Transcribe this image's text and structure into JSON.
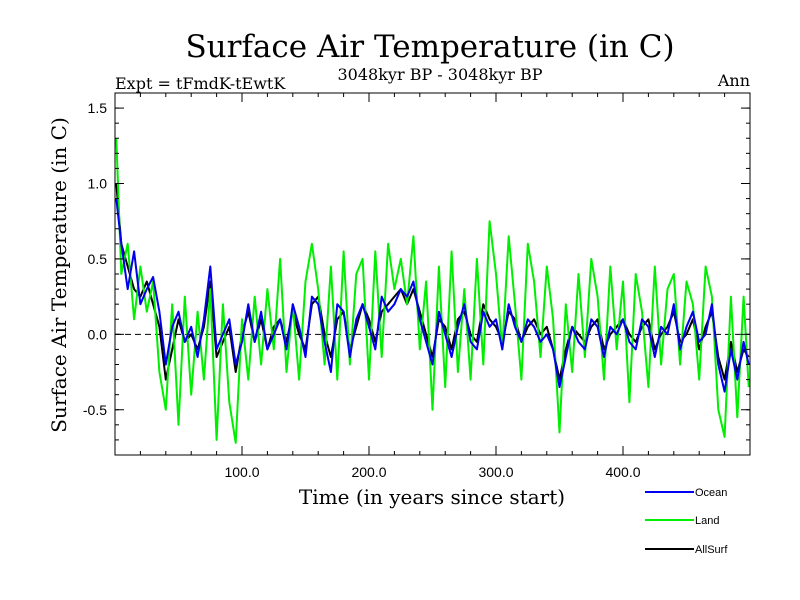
{
  "chart_data": {
    "type": "line",
    "title": "Surface Air Temperature (in C)",
    "subtitle": "3048kyr BP - 3048kyr BP",
    "expt_label": "Expt = tFmdK-tEwtK",
    "period_label": "Ann",
    "xlabel": "Time (in years since start)",
    "ylabel": "Surface Air Temperature (in C)",
    "xlim": [
      0,
      500
    ],
    "ylim": [
      -0.8,
      1.6
    ],
    "x_ticks": [
      100,
      200,
      300,
      400
    ],
    "x_tick_labels": [
      "100.0",
      "200.0",
      "300.0",
      "400.0"
    ],
    "y_ticks": [
      -0.5,
      0.0,
      0.5,
      1.0,
      1.5
    ],
    "y_tick_labels": [
      "-0.5",
      "0.0",
      "0.5",
      "1.0",
      "1.5"
    ],
    "zero_line": true,
    "series": [
      {
        "name": "AllSurf",
        "color": "#000000",
        "x": [
          1,
          5,
          10,
          15,
          20,
          25,
          30,
          35,
          40,
          45,
          50,
          55,
          60,
          65,
          70,
          75,
          80,
          85,
          90,
          95,
          100,
          105,
          110,
          115,
          120,
          125,
          130,
          135,
          140,
          145,
          150,
          155,
          160,
          165,
          170,
          175,
          180,
          185,
          190,
          195,
          200,
          205,
          210,
          215,
          220,
          225,
          230,
          235,
          240,
          245,
          250,
          255,
          260,
          265,
          270,
          275,
          280,
          285,
          290,
          295,
          300,
          305,
          310,
          315,
          320,
          325,
          330,
          335,
          340,
          345,
          350,
          355,
          360,
          365,
          370,
          375,
          380,
          385,
          390,
          395,
          400,
          405,
          410,
          415,
          420,
          425,
          430,
          435,
          440,
          445,
          450,
          455,
          460,
          465,
          470,
          475,
          480,
          485,
          490,
          495,
          499
        ],
        "values": [
          1.0,
          0.6,
          0.45,
          0.3,
          0.25,
          0.35,
          0.2,
          0.05,
          -0.3,
          -0.1,
          0.1,
          -0.05,
          0.0,
          -0.1,
          0.05,
          0.35,
          -0.15,
          -0.05,
          0.05,
          -0.25,
          0.0,
          0.15,
          -0.05,
          0.1,
          -0.1,
          0.05,
          0.1,
          -0.05,
          0.15,
          0.0,
          -0.1,
          0.2,
          0.25,
          0.0,
          -0.15,
          0.1,
          0.15,
          -0.1,
          0.05,
          0.2,
          0.1,
          -0.05,
          0.15,
          0.2,
          0.25,
          0.3,
          0.2,
          0.3,
          0.15,
          0.0,
          -0.15,
          0.1,
          0.05,
          -0.1,
          0.1,
          0.15,
          0.0,
          -0.05,
          0.2,
          0.1,
          0.05,
          -0.05,
          0.15,
          0.1,
          -0.05,
          0.05,
          0.1,
          0.0,
          0.05,
          -0.1,
          -0.3,
          -0.1,
          0.05,
          0.0,
          -0.05,
          0.05,
          0.1,
          -0.1,
          0.0,
          0.05,
          0.1,
          0.0,
          -0.05,
          0.05,
          0.1,
          -0.1,
          0.0,
          0.05,
          0.15,
          -0.05,
          0.0,
          0.1,
          -0.1,
          0.05,
          0.15,
          -0.15,
          -0.3,
          -0.05,
          -0.25,
          -0.1,
          -0.15
        ]
      },
      {
        "name": "Land",
        "color": "#00ee00",
        "x": [
          1,
          5,
          10,
          15,
          20,
          25,
          30,
          35,
          40,
          45,
          50,
          55,
          60,
          65,
          70,
          75,
          80,
          85,
          90,
          95,
          100,
          105,
          110,
          115,
          120,
          125,
          130,
          135,
          140,
          145,
          150,
          155,
          160,
          165,
          170,
          175,
          180,
          185,
          190,
          195,
          200,
          205,
          210,
          215,
          220,
          225,
          230,
          235,
          240,
          245,
          250,
          255,
          260,
          265,
          270,
          275,
          280,
          285,
          290,
          295,
          300,
          305,
          310,
          315,
          320,
          325,
          330,
          335,
          340,
          345,
          350,
          355,
          360,
          365,
          370,
          375,
          380,
          385,
          390,
          395,
          400,
          405,
          410,
          415,
          420,
          425,
          430,
          435,
          440,
          445,
          450,
          455,
          460,
          465,
          470,
          475,
          480,
          485,
          490,
          495,
          499
        ],
        "values": [
          1.3,
          0.4,
          0.6,
          0.1,
          0.45,
          0.15,
          0.35,
          -0.25,
          -0.5,
          0.2,
          -0.6,
          0.25,
          -0.4,
          0.15,
          -0.3,
          0.3,
          -0.7,
          0.2,
          -0.45,
          -0.72,
          0.1,
          -0.3,
          0.25,
          -0.2,
          0.3,
          -0.1,
          0.5,
          -0.25,
          0.2,
          -0.3,
          0.35,
          0.6,
          0.3,
          -0.2,
          0.45,
          -0.3,
          0.55,
          -0.2,
          0.4,
          0.5,
          -0.3,
          0.55,
          -0.15,
          0.6,
          0.3,
          0.5,
          0.2,
          0.65,
          -0.1,
          0.35,
          -0.5,
          0.45,
          -0.35,
          0.55,
          -0.25,
          0.3,
          -0.3,
          0.5,
          -0.2,
          0.75,
          0.4,
          -0.1,
          0.65,
          0.2,
          -0.3,
          0.6,
          0.35,
          -0.15,
          0.45,
          0.1,
          -0.65,
          0.2,
          -0.25,
          0.4,
          -0.15,
          0.5,
          0.25,
          -0.3,
          0.45,
          -0.1,
          0.35,
          -0.45,
          0.4,
          0.15,
          -0.35,
          0.45,
          -0.2,
          0.3,
          0.4,
          -0.2,
          0.35,
          0.2,
          -0.3,
          0.45,
          0.25,
          -0.5,
          -0.68,
          0.25,
          -0.55,
          0.25,
          -0.35
        ]
      },
      {
        "name": "Ocean",
        "color": "#0000ee",
        "x": [
          1,
          5,
          10,
          15,
          20,
          25,
          30,
          35,
          40,
          45,
          50,
          55,
          60,
          65,
          70,
          75,
          80,
          85,
          90,
          95,
          100,
          105,
          110,
          115,
          120,
          125,
          130,
          135,
          140,
          145,
          150,
          155,
          160,
          165,
          170,
          175,
          180,
          185,
          190,
          195,
          200,
          205,
          210,
          215,
          220,
          225,
          230,
          235,
          240,
          245,
          250,
          255,
          260,
          265,
          270,
          275,
          280,
          285,
          290,
          295,
          300,
          305,
          310,
          315,
          320,
          325,
          330,
          335,
          340,
          345,
          350,
          355,
          360,
          365,
          370,
          375,
          380,
          385,
          390,
          395,
          400,
          405,
          410,
          415,
          420,
          425,
          430,
          435,
          440,
          445,
          450,
          455,
          460,
          465,
          470,
          475,
          480,
          485,
          490,
          495,
          499
        ],
        "values": [
          0.9,
          0.6,
          0.3,
          0.55,
          0.2,
          0.3,
          0.38,
          0.15,
          -0.2,
          0.05,
          0.15,
          -0.05,
          0.05,
          -0.15,
          0.1,
          0.45,
          -0.1,
          0.0,
          0.1,
          -0.2,
          -0.05,
          0.2,
          -0.05,
          0.15,
          -0.1,
          0.0,
          0.1,
          -0.1,
          0.2,
          0.05,
          -0.15,
          0.25,
          0.2,
          -0.05,
          -0.25,
          0.2,
          0.15,
          -0.15,
          0.1,
          0.2,
          0.05,
          -0.1,
          0.25,
          0.15,
          0.2,
          0.3,
          0.25,
          0.35,
          0.1,
          -0.05,
          -0.2,
          0.15,
          0.0,
          -0.15,
          0.05,
          0.2,
          -0.05,
          -0.1,
          0.15,
          0.05,
          0.1,
          -0.1,
          0.2,
          0.05,
          -0.05,
          0.1,
          0.05,
          -0.05,
          0.0,
          -0.1,
          -0.35,
          -0.15,
          0.05,
          -0.05,
          -0.1,
          0.1,
          0.05,
          -0.15,
          0.05,
          0.0,
          0.1,
          -0.05,
          -0.1,
          0.1,
          0.05,
          -0.15,
          0.05,
          0.0,
          0.2,
          -0.1,
          0.05,
          0.15,
          -0.05,
          0.0,
          0.2,
          -0.2,
          -0.38,
          -0.1,
          -0.3,
          -0.05,
          -0.2
        ]
      }
    ],
    "legend": {
      "placement": "bottom-right",
      "entries": [
        {
          "label": "Ocean",
          "color": "#0000ee"
        },
        {
          "label": "Land",
          "color": "#00ee00"
        },
        {
          "label": "AllSurf",
          "color": "#000000"
        }
      ]
    }
  }
}
